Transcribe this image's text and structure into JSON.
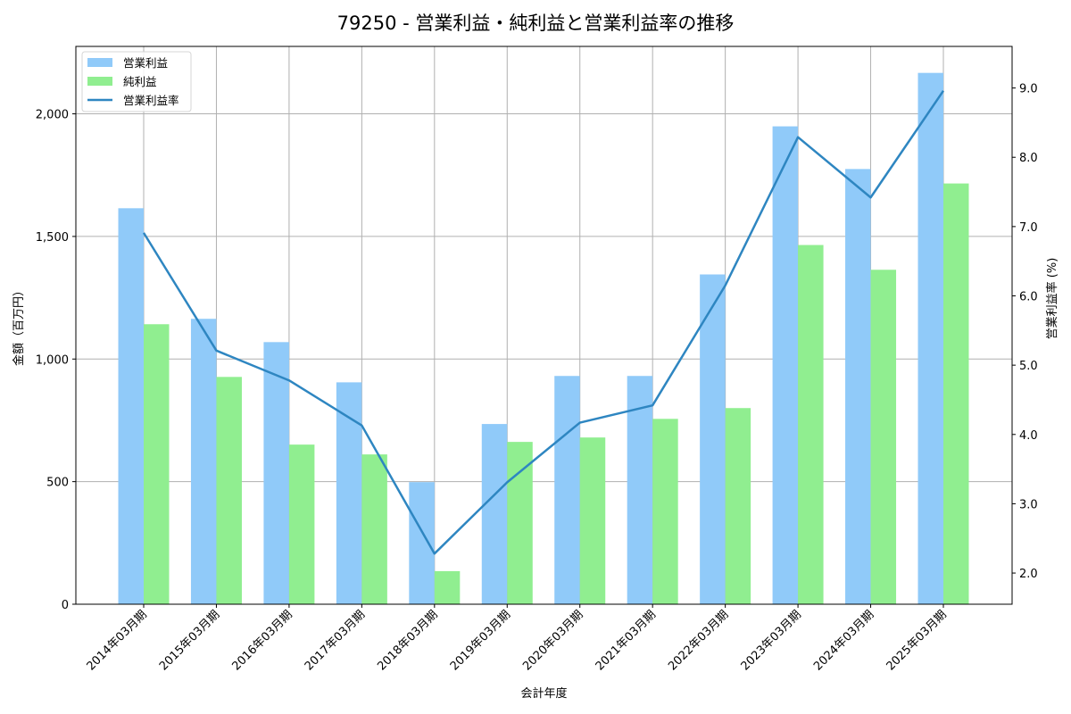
{
  "title": "79250 - 営業利益・純利益と営業利益率の推移",
  "legend": {
    "items": [
      {
        "label": "営業利益",
        "type": "bar",
        "color": "#90CAF9"
      },
      {
        "label": "純利益",
        "type": "bar",
        "color": "#90EE90"
      },
      {
        "label": "営業利益率",
        "type": "line",
        "color": "#2E86C1"
      }
    ]
  },
  "axes": {
    "xlabel": "会計年度",
    "ylabel_left": "金額（百万円）",
    "ylabel_right": "営業利益率 (%)",
    "left_ticks": [
      "0",
      "500",
      "1,000",
      "1,500",
      "2,000"
    ],
    "right_ticks": [
      "2.0",
      "3.0",
      "4.0",
      "5.0",
      "6.0",
      "7.0",
      "8.0",
      "9.0"
    ]
  },
  "chart_data": {
    "type": "bar",
    "title": "79250 - 営業利益・純利益と営業利益率の推移",
    "xlabel": "会計年度",
    "ylabel": "金額（百万円）",
    "y2label": "営業利益率 (%)",
    "categories": [
      "2014年03月期",
      "2015年03月期",
      "2016年03月期",
      "2017年03月期",
      "2018年03月期",
      "2019年03月期",
      "2020年03月期",
      "2021年03月期",
      "2022年03月期",
      "2023年03月期",
      "2024年03月期",
      "2025年03月期"
    ],
    "series": [
      {
        "name": "営業利益",
        "type": "bar",
        "axis": "left",
        "color": "#90CAF9",
        "values": [
          1615,
          1164,
          1069,
          905,
          498,
          735,
          931,
          931,
          1345,
          1949,
          1775,
          2167
        ]
      },
      {
        "name": "純利益",
        "type": "bar",
        "axis": "left",
        "color": "#90EE90",
        "values": [
          1142,
          927,
          651,
          611,
          135,
          662,
          680,
          756,
          800,
          1465,
          1364,
          1716
        ]
      },
      {
        "name": "営業利益率",
        "type": "line",
        "axis": "right",
        "color": "#2E86C1",
        "values": [
          6.91,
          5.21,
          4.78,
          4.13,
          2.28,
          3.31,
          4.17,
          4.42,
          6.15,
          8.29,
          7.42,
          8.96
        ]
      }
    ],
    "ylim": [
      0,
      2275
    ],
    "y2lim": [
      1.55,
      9.6
    ],
    "grid": true,
    "legend_position": "upper left"
  }
}
